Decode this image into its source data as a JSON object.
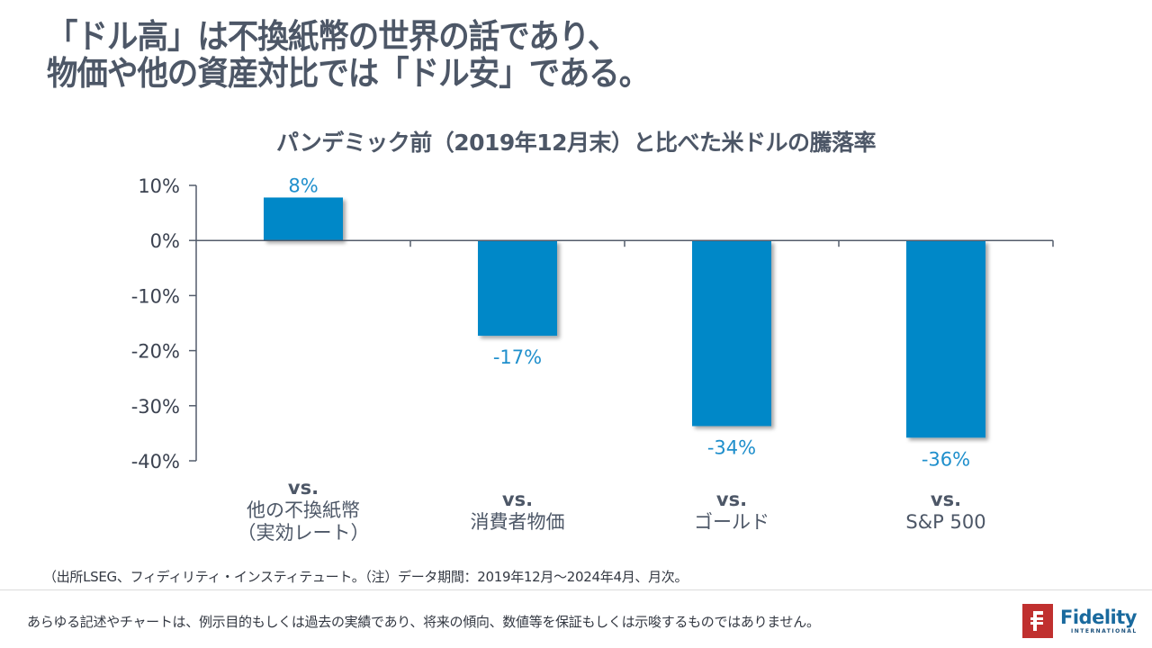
{
  "headline": {
    "line1": "「ドル高」は不換紙幣の世界の話であり、",
    "line2": "物価や他の資産対比では「ドル安」である。"
  },
  "chart_data": {
    "type": "bar",
    "title": "パンデミック前（2019年12月末）と比べた米ドルの騰落率",
    "xlabel": "",
    "ylabel": "",
    "ylim": [
      -40,
      10
    ],
    "yticks": [
      10,
      0,
      -10,
      -20,
      -30,
      -40
    ],
    "ytick_labels": [
      "10%",
      "0%",
      "-10%",
      "-20%",
      "-30%",
      "-40%"
    ],
    "grid": false,
    "legend": "none",
    "bar_color": "#0088c8",
    "label_color": "#1f8fcc",
    "categories": [
      {
        "vs": "vs.",
        "lines": [
          "他の不換紙幣",
          "（実効レート）"
        ]
      },
      {
        "vs": "vs.",
        "lines": [
          "消費者物価"
        ]
      },
      {
        "vs": "vs.",
        "lines": [
          "ゴールド"
        ]
      },
      {
        "vs": "vs.",
        "lines": [
          "S&P 500"
        ]
      }
    ],
    "values": [
      7.8,
      -17.3,
      -33.7,
      -35.8
    ],
    "data_labels": [
      "8%",
      "-17%",
      "-34%",
      "-36%"
    ]
  },
  "source_note": "（出所LSEG、フィディリティ・インスティテュート。（注）データ期間：2019年12月～2024年4月、月次。",
  "disclaimer": "あらゆる記述やチャートは、例示目的もしくは過去の実績であり、将来の傾向、数値等を保証もしくは示唆するものではありません。",
  "logo": {
    "name": "Fidelity",
    "sub": "INTERNATIONAL",
    "brand_color": "#c0302f"
  }
}
